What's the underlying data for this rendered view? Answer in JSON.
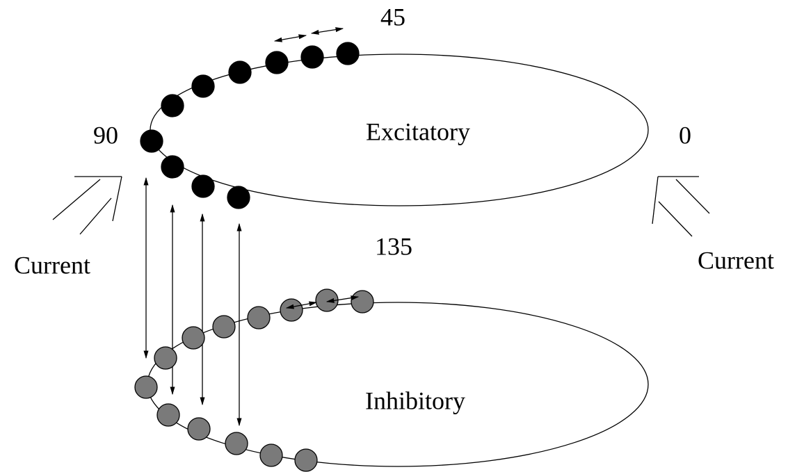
{
  "labels": {
    "top_excitatory": "45",
    "left": "90",
    "right": "0",
    "top_inhibitory": "135"
  },
  "populations": [
    {
      "label": "Excitatory"
    },
    {
      "label": "Inhibitory"
    }
  ],
  "inputs": [
    {
      "label": "Current"
    },
    {
      "label": "Current"
    }
  ]
}
